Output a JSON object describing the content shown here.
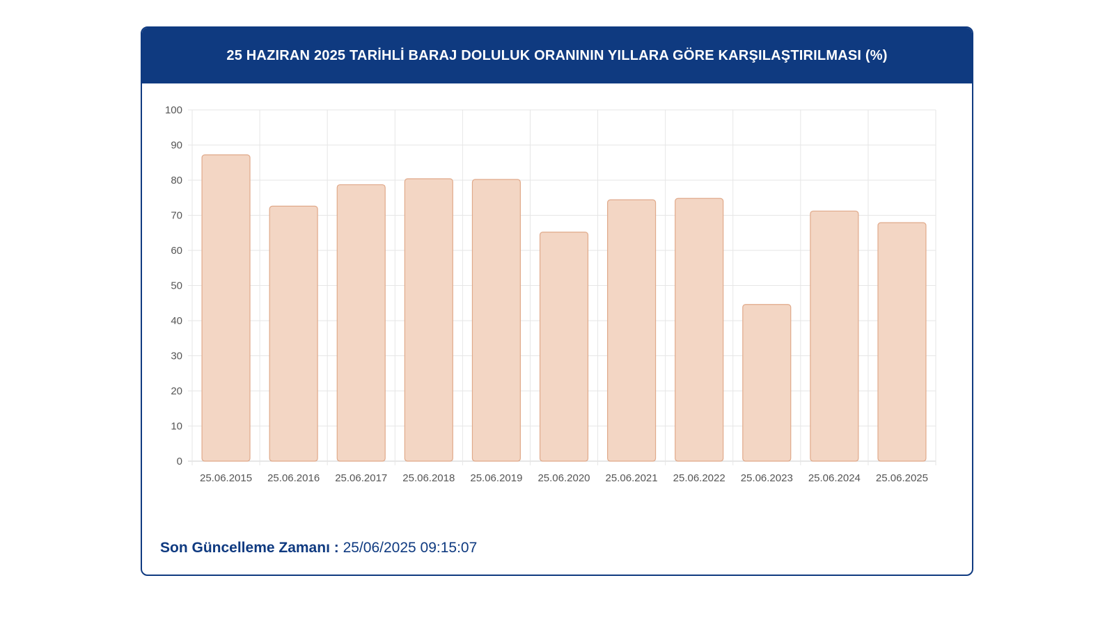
{
  "header": {
    "title": "25 HAZIRAN 2025 TARİHLİ BARAJ DOLULUK ORANININ YILLARA GÖRE KARŞILAŞTIRILMASI (%)"
  },
  "footer": {
    "label": "Son Güncelleme Zamanı :",
    "value": "25/06/2025 09:15:07"
  },
  "colors": {
    "header_bg": "#0f3a80",
    "bar_fill": "#f3d6c4",
    "bar_stroke": "#e0a98a",
    "grid": "#e6e6e6"
  },
  "chart_data": {
    "type": "bar",
    "title": "25 HAZIRAN 2025 TARİHLİ BARAJ DOLULUK ORANININ YILLARA GÖRE KARŞILAŞTIRILMASI (%)",
    "categories": [
      "25.06.2015",
      "25.06.2016",
      "25.06.2017",
      "25.06.2018",
      "25.06.2019",
      "25.06.2020",
      "25.06.2021",
      "25.06.2022",
      "25.06.2023",
      "25.06.2024",
      "25.06.2025"
    ],
    "values": [
      87.2,
      72.6,
      78.7,
      80.4,
      80.2,
      65.2,
      74.4,
      74.8,
      44.6,
      71.2,
      67.9
    ],
    "ylim": [
      0,
      100
    ],
    "yticks": [
      0,
      10,
      20,
      30,
      40,
      50,
      60,
      70,
      80,
      90,
      100
    ],
    "grid": true,
    "legend": "none"
  }
}
